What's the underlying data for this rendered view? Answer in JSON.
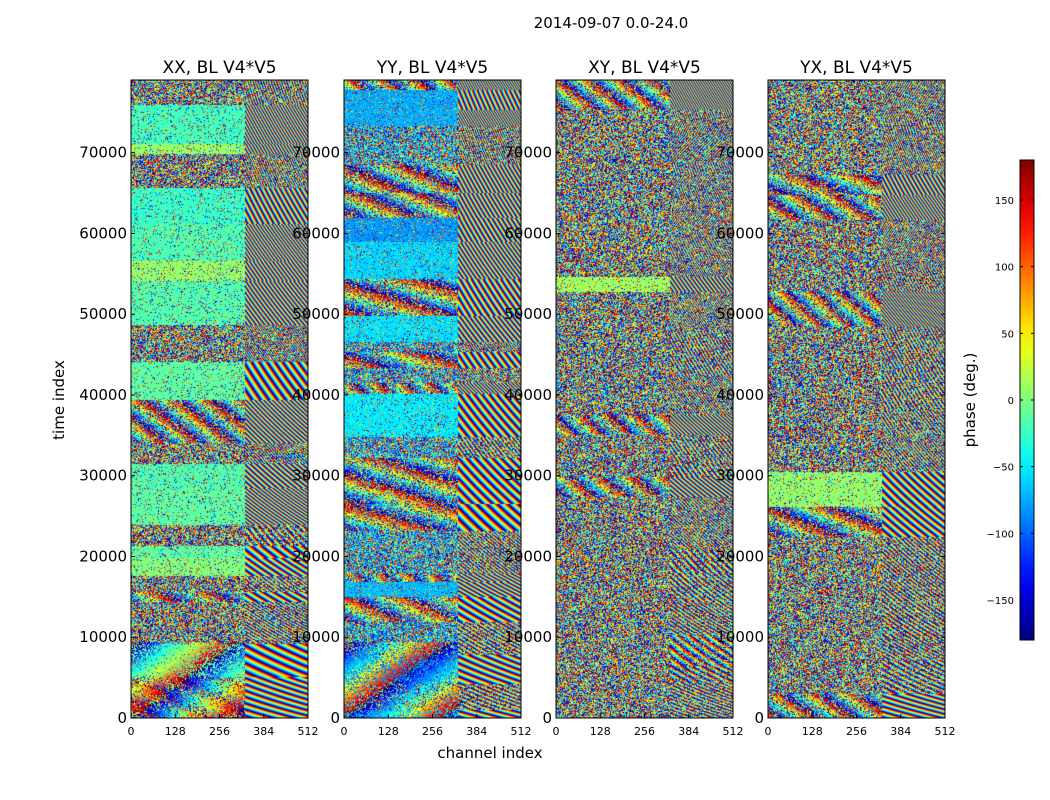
{
  "chart_data": [
    {
      "type": "heatmap",
      "title": "XX, BL V4*V5",
      "mode": "xx",
      "xlabel": "channel index",
      "ylabel": "time index",
      "xlim": [
        0,
        512
      ],
      "ylim": [
        0,
        79000
      ],
      "xticks": [
        "0",
        "128",
        "256",
        "384",
        "512"
      ],
      "yticks": [
        "0",
        "10000",
        "20000",
        "30000",
        "40000",
        "50000",
        "60000",
        "70000"
      ],
      "show_ylabel": true
    },
    {
      "type": "heatmap",
      "title": "YY, BL V4*V5",
      "mode": "yy",
      "xlabel": "",
      "ylabel": "",
      "xlim": [
        0,
        512
      ],
      "ylim": [
        0,
        79000
      ],
      "xticks": [
        "0",
        "128",
        "256",
        "384",
        "512"
      ],
      "yticks": [
        "0",
        "10000",
        "20000",
        "30000",
        "40000",
        "50000",
        "60000",
        "70000"
      ],
      "show_ylabel": false
    },
    {
      "type": "heatmap",
      "title": "XY, BL V4*V5",
      "mode": "cross",
      "xlabel": "",
      "ylabel": "",
      "xlim": [
        0,
        512
      ],
      "ylim": [
        0,
        79000
      ],
      "xticks": [
        "0",
        "128",
        "256",
        "384",
        "512"
      ],
      "yticks": [
        "0",
        "10000",
        "20000",
        "30000",
        "40000",
        "50000",
        "60000",
        "70000"
      ],
      "show_ylabel": false
    },
    {
      "type": "heatmap",
      "title": "YX, BL V4*V5",
      "mode": "cross",
      "xlabel": "",
      "ylabel": "",
      "xlim": [
        0,
        512
      ],
      "ylim": [
        0,
        79000
      ],
      "xticks": [
        "0",
        "128",
        "256",
        "384",
        "512"
      ],
      "yticks": [
        "0",
        "10000",
        "20000",
        "30000",
        "40000",
        "50000",
        "60000",
        "70000"
      ],
      "show_ylabel": false
    }
  ],
  "figure": {
    "suptitle": "2014-09-07 0.0-24.0",
    "xlabel": "channel index",
    "ylabel": "time index"
  },
  "colorbar": {
    "label": "phase (deg.)",
    "range": [
      -180,
      180
    ],
    "ticks": [
      "150",
      "100",
      "50",
      "0",
      "−50",
      "−100",
      "−150"
    ],
    "tick_values": [
      150,
      100,
      50,
      0,
      -50,
      -100,
      -150
    ],
    "colormap": "jet"
  }
}
